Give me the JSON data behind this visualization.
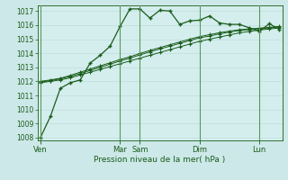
{
  "background_color": "#cce8e8",
  "plot_bg": "#d4eeee",
  "grid_color": "#b8d8d8",
  "line_color": "#1a5c1a",
  "vline_color": "#5a9a5a",
  "title": "Pression niveau de la mer( hPa )",
  "ylim": [
    1007.8,
    1017.4
  ],
  "yticks": [
    1008,
    1009,
    1010,
    1011,
    1012,
    1013,
    1014,
    1015,
    1016,
    1017
  ],
  "day_labels": [
    "Ven",
    "Mar",
    "Sam",
    "Dim",
    "Lun"
  ],
  "day_x": [
    0,
    8,
    10,
    16,
    22
  ],
  "n_points": 25,
  "series1": [
    1008.0,
    1009.5,
    1011.5,
    1011.9,
    1012.1,
    1013.3,
    1013.85,
    1014.5,
    1015.9,
    1017.15,
    1017.15,
    1016.5,
    1017.05,
    1017.0,
    1016.05,
    1016.3,
    1016.35,
    1016.65,
    1016.15,
    1016.05,
    1016.05,
    1015.8,
    1015.55,
    1016.1,
    1015.7
  ],
  "series2": [
    1011.9,
    1012.0,
    1012.1,
    1012.25,
    1012.45,
    1012.65,
    1012.85,
    1013.05,
    1013.25,
    1013.45,
    1013.65,
    1013.85,
    1014.05,
    1014.25,
    1014.45,
    1014.65,
    1014.85,
    1015.0,
    1015.15,
    1015.3,
    1015.45,
    1015.55,
    1015.65,
    1015.72,
    1015.8
  ],
  "series3": [
    1011.95,
    1012.05,
    1012.18,
    1012.35,
    1012.55,
    1012.78,
    1013.0,
    1013.22,
    1013.45,
    1013.65,
    1013.88,
    1014.1,
    1014.3,
    1014.5,
    1014.7,
    1014.9,
    1015.1,
    1015.22,
    1015.38,
    1015.5,
    1015.62,
    1015.68,
    1015.74,
    1015.8,
    1015.87
  ],
  "series4": [
    1012.0,
    1012.1,
    1012.22,
    1012.42,
    1012.65,
    1012.88,
    1013.1,
    1013.32,
    1013.55,
    1013.75,
    1013.98,
    1014.2,
    1014.4,
    1014.6,
    1014.8,
    1015.0,
    1015.18,
    1015.32,
    1015.46,
    1015.57,
    1015.67,
    1015.73,
    1015.78,
    1015.84,
    1015.9
  ]
}
